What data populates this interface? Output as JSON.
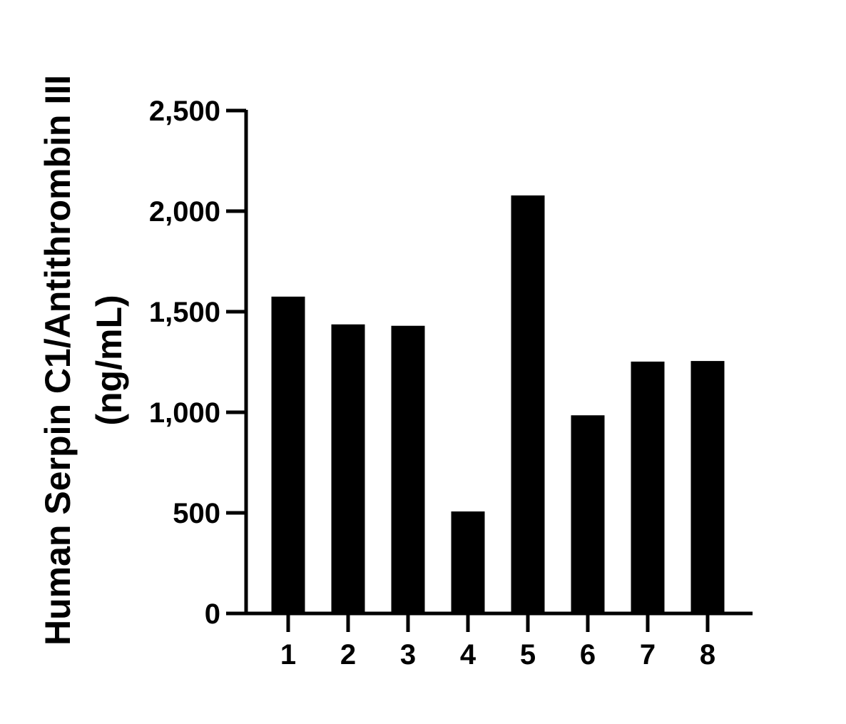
{
  "chart_data": {
    "type": "bar",
    "title": "",
    "xlabel": "",
    "ylabel_lines": [
      "Human Serpin C1/Antithrombin III",
      "(ng/mL)"
    ],
    "categories": [
      "1",
      "2",
      "3",
      "4",
      "5",
      "6",
      "7",
      "8"
    ],
    "values": [
      1575,
      1437,
      1430,
      507,
      2078,
      985,
      1252,
      1255
    ],
    "ylim": [
      0,
      2500
    ],
    "yticks": [
      0,
      500,
      1000,
      1500,
      2000,
      2500
    ],
    "ytick_labels": [
      "0",
      "500",
      "1,000",
      "1,500",
      "2,000",
      "2,500"
    ],
    "bar_color": "#000000",
    "grid": false,
    "legend": false
  }
}
